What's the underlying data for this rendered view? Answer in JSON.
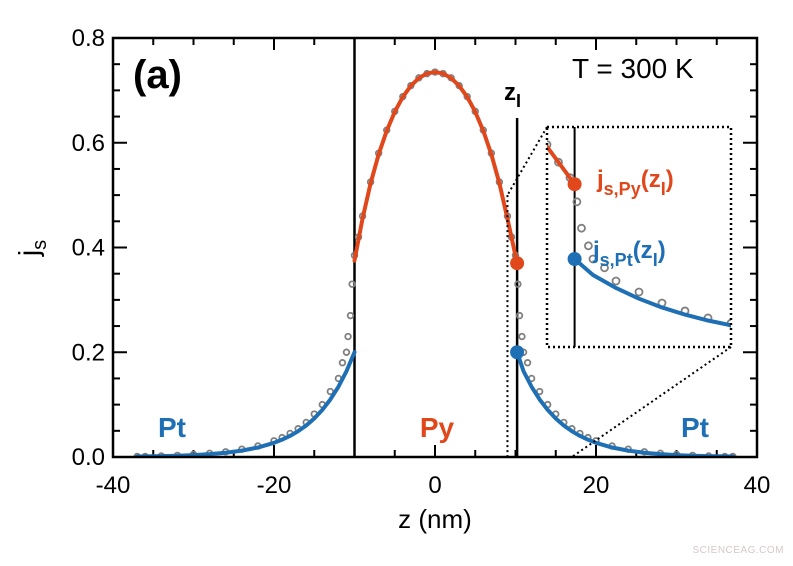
{
  "chart_data": {
    "type": "scatter",
    "panel_label": "(a)",
    "annotation_temperature": "T = 300 K",
    "annotation_interface": "z",
    "annotation_interface_sub": "I",
    "xlabel": "z (nm)",
    "ylabel": "j",
    "ylabel_sub": "s",
    "xlim": [
      -40,
      40
    ],
    "ylim": [
      0,
      0.8
    ],
    "xticks": [
      -40,
      -20,
      0,
      20,
      40
    ],
    "xtick_labels": [
      "-40",
      "-20",
      "0",
      "20",
      "40"
    ],
    "yticks": [
      0,
      0.2,
      0.4,
      0.6,
      0.8
    ],
    "ytick_labels": [
      "0.0",
      "0.2",
      "0.4",
      "0.6",
      "0.8"
    ],
    "interfaces": [
      -10,
      10.2
    ],
    "region_labels": [
      {
        "text": "Pt",
        "z": -33,
        "color": "#1f6fb5"
      },
      {
        "text": "Py",
        "z": 0,
        "color": "#e0481c"
      },
      {
        "text": "Pt",
        "z": 32,
        "color": "#1f6fb5"
      }
    ],
    "colors": {
      "py": "#e0481c",
      "pt": "#1f6fb5",
      "data": "#808080"
    },
    "data_points": {
      "x": [
        -37,
        -36,
        -34,
        -32,
        -30,
        -28,
        -26,
        -24,
        -22,
        -20,
        -19,
        -18,
        -17,
        -16,
        -15,
        -14,
        -13,
        -12,
        -11.5,
        -11,
        -10.8,
        -10.5,
        -10.3,
        -10,
        -9.5,
        -9,
        -8,
        -7,
        -6,
        -5,
        -4,
        -3,
        -2,
        -1,
        0,
        1,
        2,
        3,
        4,
        5,
        6,
        7,
        8,
        9,
        9.5,
        10,
        10.3,
        10.5,
        10.8,
        11,
        11.5,
        12,
        13,
        14,
        15,
        16,
        17,
        18,
        19,
        20,
        22,
        24,
        26,
        28,
        30,
        32,
        34,
        36,
        37
      ],
      "y": [
        0.001,
        0.001,
        0.002,
        0.003,
        0.005,
        0.007,
        0.01,
        0.015,
        0.021,
        0.031,
        0.037,
        0.045,
        0.054,
        0.066,
        0.082,
        0.1,
        0.125,
        0.15,
        0.18,
        0.2,
        0.23,
        0.27,
        0.33,
        0.385,
        0.42,
        0.46,
        0.525,
        0.58,
        0.624,
        0.66,
        0.688,
        0.709,
        0.724,
        0.732,
        0.735,
        0.732,
        0.724,
        0.709,
        0.688,
        0.66,
        0.624,
        0.58,
        0.525,
        0.46,
        0.42,
        0.385,
        0.33,
        0.27,
        0.23,
        0.2,
        0.18,
        0.15,
        0.125,
        0.1,
        0.082,
        0.066,
        0.054,
        0.045,
        0.037,
        0.031,
        0.021,
        0.015,
        0.01,
        0.007,
        0.005,
        0.003,
        0.002,
        0.001,
        0.001
      ]
    },
    "series": [
      {
        "part": "Pt-left",
        "color": "#1f6fb5",
        "x": [
          -37,
          -34,
          -32,
          -30,
          -28,
          -26,
          -24,
          -22,
          -20,
          -19,
          -18,
          -17,
          -16,
          -15,
          -14,
          -13,
          -12,
          -11,
          -10
        ],
        "y": [
          0.0009,
          0.0017,
          0.0025,
          0.0037,
          0.0055,
          0.0082,
          0.0122,
          0.0181,
          0.0271,
          0.0331,
          0.0404,
          0.0493,
          0.0602,
          0.0736,
          0.0899,
          0.1098,
          0.1341,
          0.1637,
          0.2
        ]
      },
      {
        "part": "Py",
        "color": "#e0481c",
        "x": [
          -10,
          -9,
          -8,
          -7,
          -6,
          -5,
          -4,
          -3,
          -2,
          -1,
          0,
          1,
          2,
          3,
          4,
          5,
          6,
          7,
          8,
          9,
          10.2
        ],
        "y": [
          0.3751,
          0.4553,
          0.5226,
          0.5779,
          0.6227,
          0.659,
          0.6874,
          0.7087,
          0.7235,
          0.7322,
          0.735,
          0.7322,
          0.7235,
          0.7087,
          0.6874,
          0.659,
          0.6227,
          0.5779,
          0.5226,
          0.4553,
          0.37
        ]
      },
      {
        "part": "Pt-right",
        "color": "#1f6fb5",
        "x": [
          10.2,
          11,
          12,
          13,
          14,
          15,
          16,
          17,
          18,
          19,
          20,
          22,
          24,
          26,
          28,
          30,
          32,
          34,
          37
        ],
        "y": [
          0.2,
          0.1637,
          0.1341,
          0.1098,
          0.0899,
          0.0736,
          0.0602,
          0.0493,
          0.0404,
          0.0331,
          0.0271,
          0.0181,
          0.0122,
          0.0082,
          0.0055,
          0.0037,
          0.0025,
          0.0017,
          0.0009
        ]
      }
    ],
    "markers": [
      {
        "name": "js-py-zI",
        "x": 10.2,
        "y": 0.37,
        "color": "#e0481c"
      },
      {
        "name": "js-pt-zI",
        "x": 10.2,
        "y": 0.2,
        "color": "#1f6fb5"
      }
    ],
    "inset": {
      "xlim": [
        9,
        17
      ],
      "ylim": [
        0,
        0.5
      ],
      "label_py": "j",
      "label_py_sub": "s,Py",
      "label_py_arg": "(z",
      "label_py_arg_sub": "I",
      "label_py_close": ")",
      "label_pt": "j",
      "label_pt_sub": "s,Pt",
      "label_pt_arg": "(z",
      "label_pt_arg_sub": "I",
      "label_pt_close": ")"
    }
  },
  "watermark": "SCIENCEAG.COM"
}
